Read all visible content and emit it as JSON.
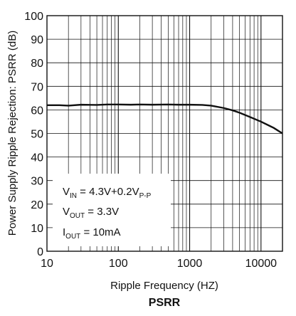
{
  "chart_data": {
    "type": "line",
    "caption": "PSRR",
    "xlabel": "Ripple Frequency (HZ)",
    "ylabel": "Power Supply Ripple Rejection: PSRR (dB)",
    "x_scale": "log",
    "xlim": [
      10,
      20000
    ],
    "ylim": [
      0,
      100
    ],
    "grid": true,
    "x_tick_labels": [
      "10",
      "100",
      "1000",
      "10000"
    ],
    "y_tick_labels": [
      "0",
      "10",
      "20",
      "30",
      "40",
      "50",
      "60",
      "70",
      "80",
      "90",
      "100"
    ],
    "annotations": [
      {
        "main": "V",
        "sub": "IN",
        "rest": " = 4.3V+0.2V",
        "rest_sub": "P-P"
      },
      {
        "main": "V",
        "sub": "OUT",
        "rest": " = 3.3V",
        "rest_sub": ""
      },
      {
        "main": "I",
        "sub": "OUT",
        "rest": " = 10mA",
        "rest_sub": ""
      }
    ],
    "series": [
      {
        "x": [
          10,
          15,
          20,
          30,
          50,
          70,
          100,
          150,
          200,
          300,
          500,
          700,
          1000,
          1500,
          2000,
          3000,
          4000,
          5000,
          7000,
          10000,
          15000,
          20000
        ],
        "y": [
          62,
          62,
          61.8,
          62.2,
          62.1,
          62.3,
          62.3,
          62.2,
          62.3,
          62.2,
          62.3,
          62.2,
          62.2,
          62.1,
          61.8,
          60.8,
          59.8,
          58.8,
          57,
          55,
          52.4,
          50
        ]
      }
    ],
    "line_color": "#111111"
  }
}
